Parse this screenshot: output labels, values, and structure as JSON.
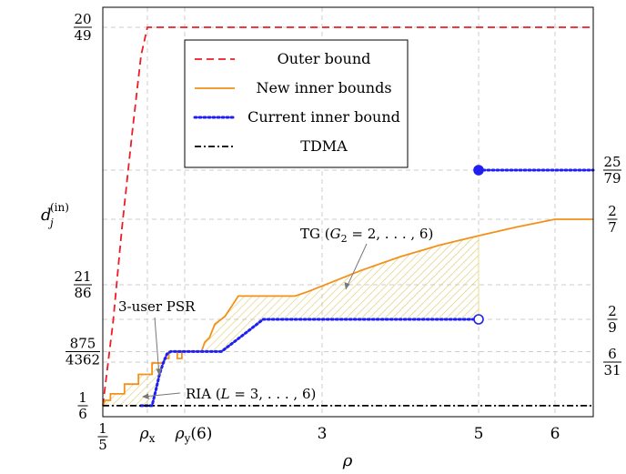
{
  "chart_data": {
    "type": "line",
    "title": "",
    "xlabel": "ρ",
    "ylabel": "d_j^{(in)}",
    "xlim": [
      0.2,
      6.5
    ],
    "ylim": [
      0.1545,
      0.425
    ],
    "grid": true,
    "legend_placement": "top-center",
    "x_ticks": [
      {
        "value": 0.2,
        "num": "1",
        "den": "5"
      },
      {
        "value": 0.55,
        "text": "ρ",
        "sub": "x"
      },
      {
        "value": 0.95,
        "text": "ρ",
        "sub": "y",
        "suffix": "(6)"
      },
      {
        "value": 3,
        "text": "3"
      },
      {
        "value": 5,
        "text": "5"
      },
      {
        "value": 6,
        "text": "6"
      }
    ],
    "y_ticks_left": [
      {
        "value": 0.408163,
        "num": "20",
        "den": "49"
      },
      {
        "value": 0.244186,
        "num": "21",
        "den": "86"
      },
      {
        "value": 0.200596,
        "num": "875",
        "den": "4362"
      },
      {
        "value": 0.166667,
        "num": "1",
        "den": "6"
      }
    ],
    "y_ticks_right": [
      {
        "value": 0.316456,
        "num": "25",
        "den": "79"
      },
      {
        "value": 0.285714,
        "num": "2",
        "den": "7"
      },
      {
        "value": 0.222222,
        "num": "2",
        "den": "9"
      },
      {
        "value": 0.193548,
        "num": "6",
        "den": "31"
      }
    ],
    "series": [
      {
        "name": "Outer bound",
        "color": "#ee1c24",
        "dash": "dashed",
        "x": [
          0.2,
          0.28,
          0.35,
          0.43,
          0.5,
          0.55,
          0.7,
          6.5
        ],
        "y": [
          0.1667,
          0.22,
          0.28,
          0.34,
          0.39,
          0.408163,
          0.408163,
          0.408163
        ]
      },
      {
        "name": "New inner bounds",
        "color": "#f39019",
        "dash": "solid",
        "x": [
          0.2,
          0.22,
          0.26,
          0.26,
          0.37,
          0.37,
          0.48,
          0.48,
          0.6,
          0.6,
          0.73,
          0.73,
          0.78,
          0.78,
          0.87,
          0.87,
          0.92,
          0.92,
          1.2,
          1.25,
          1.32,
          1.4,
          1.55,
          1.75,
          2.12,
          2.6,
          2.8,
          3.5,
          4.0,
          4.5,
          5.0,
          5.5,
          6.0,
          6.5
        ],
        "y": [
          0.1667,
          0.17,
          0.17,
          0.174,
          0.174,
          0.18,
          0.18,
          0.186,
          0.186,
          0.193,
          0.193,
          0.196,
          0.196,
          0.2006,
          0.2006,
          0.196,
          0.196,
          0.2006,
          0.2006,
          0.207,
          0.21,
          0.219,
          0.224,
          0.237,
          0.237,
          0.237,
          0.24,
          0.2533,
          0.262,
          0.2693,
          0.2753,
          0.2808,
          0.285714,
          0.285714
        ]
      },
      {
        "name": "Current inner bound",
        "color": "#1f1ff2",
        "dash": "dotted",
        "x": [
          0.5,
          0.6,
          0.64,
          0.68,
          0.72,
          0.76,
          0.8,
          0.84,
          0.9,
          1.0,
          1.5,
          1.9,
          2.12,
          5.0
        ],
        "y": [
          0.1667,
          0.1667,
          0.176,
          0.186,
          0.193,
          0.199,
          0.2006,
          0.2006,
          0.2006,
          0.2006,
          0.2006,
          0.2145,
          0.2222,
          0.2222
        ]
      },
      {
        "name": "Current inner bound (ρ ≥ 5)",
        "color": "#1f1ff2",
        "dash": "dotted",
        "x": [
          5.0,
          6.5
        ],
        "y": [
          0.316456,
          0.316456
        ]
      },
      {
        "name": "TDMA",
        "color": "#000000",
        "dash": "dashdot",
        "x": [
          0.2,
          6.5
        ],
        "y": [
          0.1667,
          0.1667
        ]
      }
    ],
    "markers": [
      {
        "x": 5,
        "y": 0.316456,
        "filled": true,
        "color": "#1f1ff2"
      },
      {
        "x": 5,
        "y": 0.222222,
        "filled": false,
        "color": "#1f1ff2"
      }
    ],
    "annotations": [
      {
        "text": "TG (G",
        "sub": "2",
        "rest": " = 2, . . . , 6)"
      },
      {
        "text": "3-user PSR"
      },
      {
        "text": "RIA (L = 3, . . . , 6)"
      }
    ],
    "legend": [
      {
        "label": "Outer bound",
        "color": "#ee1c24",
        "dash": "dashed"
      },
      {
        "label": "New inner bounds",
        "color": "#f39019",
        "dash": "solid"
      },
      {
        "label": "Current inner bound",
        "color": "#1f1ff2",
        "dash": "dotted"
      },
      {
        "label": "TDMA",
        "color": "#000000",
        "dash": "dashdot"
      }
    ]
  }
}
